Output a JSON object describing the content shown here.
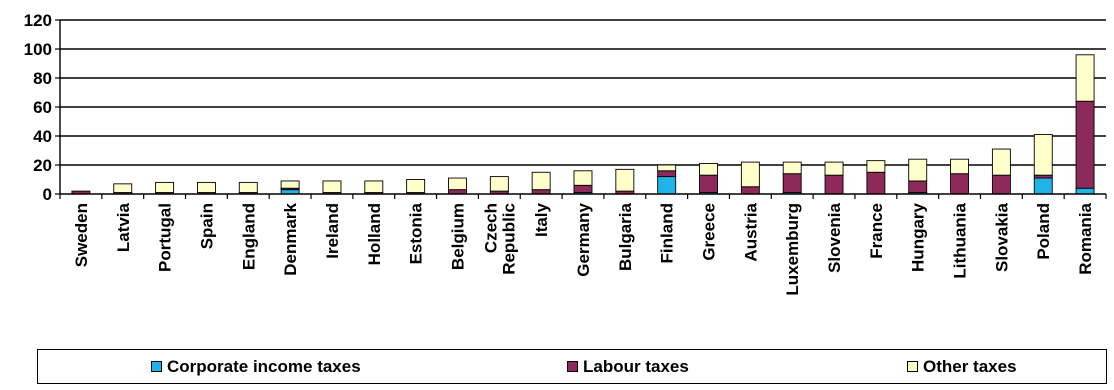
{
  "chart_data": {
    "type": "bar",
    "stacked": true,
    "title": "",
    "xlabel": "",
    "ylabel": "",
    "ylim": [
      0,
      120
    ],
    "yticks": [
      0,
      20,
      40,
      60,
      80,
      100,
      120
    ],
    "grid": true,
    "legend_position": "bottom",
    "categories": [
      "Sweden",
      "Latvia",
      "Portugal",
      "Spain",
      "England",
      "Denmark",
      "Ireland",
      "Holland",
      "Estonia",
      "Belgium",
      "Czech Republic",
      "Italy",
      "Germany",
      "Bulgaria",
      "Finland",
      "Greece",
      "Austria",
      "Luxemburg",
      "Slovenia",
      "France",
      "Hungary",
      "Lithuania",
      "Slovakia",
      "Poland",
      "Romania"
    ],
    "series": [
      {
        "name": "Corporate income taxes",
        "color": "#1fb3e8",
        "values": [
          0,
          0,
          0,
          0,
          0,
          3,
          0,
          0,
          0,
          0,
          0,
          0,
          1,
          0,
          12,
          1,
          0,
          1,
          0,
          0,
          1,
          0,
          0,
          11,
          4
        ]
      },
      {
        "name": "Labour taxes",
        "color": "#8e2a5a",
        "values": [
          2,
          1,
          1,
          1,
          1,
          1,
          1,
          1,
          1,
          3,
          2,
          3,
          5,
          2,
          4,
          12,
          5,
          13,
          13,
          15,
          8,
          14,
          13,
          2,
          60
        ]
      },
      {
        "name": "Other taxes",
        "color": "#ffffcc",
        "values": [
          0,
          6,
          7,
          7,
          7,
          5,
          8,
          8,
          9,
          8,
          10,
          12,
          10,
          15,
          4,
          8,
          17,
          8,
          9,
          8,
          15,
          10,
          18,
          28,
          32
        ]
      }
    ]
  }
}
